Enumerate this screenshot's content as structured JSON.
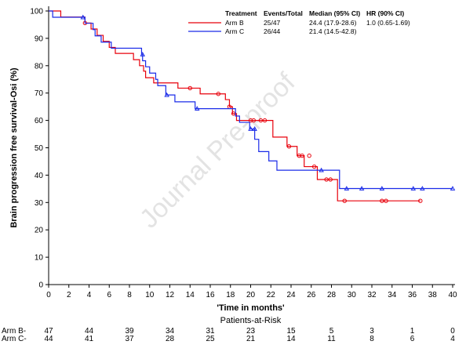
{
  "chart_data": {
    "type": "line",
    "title": "",
    "xlabel": "'Time in months'",
    "ylabel": "Brain progression free survival-Osi (%)",
    "xlim": [
      0,
      40
    ],
    "ylim": [
      0,
      100
    ],
    "x_ticks": [
      0,
      2,
      4,
      6,
      8,
      10,
      12,
      14,
      16,
      18,
      20,
      22,
      24,
      26,
      28,
      30,
      32,
      34,
      36,
      38,
      40
    ],
    "y_ticks": [
      0,
      10,
      20,
      30,
      40,
      50,
      60,
      70,
      80,
      90,
      100
    ],
    "grid": false,
    "watermark": "Journal Pre-proof",
    "legend": {
      "placement": "top-right",
      "headers": [
        "Treatment",
        "Events/Total",
        "Median (95% CI)",
        "HR (90% CI)"
      ],
      "rows": [
        {
          "treatment": "Arm B",
          "events": "25/47",
          "median": "24.4 (17.9-28.6)",
          "hr": "1.0 (0.65-1.69)",
          "color": "#e8000b",
          "marker": "circle"
        },
        {
          "treatment": "Arm C",
          "events": "26/44",
          "median": "21.4 (14.5-42.8)",
          "hr": "",
          "color": "#1a2be8",
          "marker": "triangle"
        }
      ]
    },
    "series": [
      {
        "name": "Arm B",
        "color": "#e8000b",
        "marker": "circle",
        "steps": [
          [
            0,
            100
          ],
          [
            1.2,
            97.8
          ],
          [
            3.6,
            95.6
          ],
          [
            4.2,
            93.4
          ],
          [
            4.8,
            91.1
          ],
          [
            5.4,
            88.9
          ],
          [
            6.0,
            86.7
          ],
          [
            6.6,
            84.5
          ],
          [
            8.4,
            82.2
          ],
          [
            9.0,
            80.0
          ],
          [
            9.4,
            78.0
          ],
          [
            9.6,
            75.6
          ],
          [
            10.4,
            73.7
          ],
          [
            12.8,
            71.8
          ],
          [
            15.0,
            69.7
          ],
          [
            17.5,
            67.6
          ],
          [
            17.9,
            65.0
          ],
          [
            18.2,
            62.5
          ],
          [
            18.6,
            60.0
          ],
          [
            22.2,
            53.9
          ],
          [
            23.6,
            50.5
          ],
          [
            24.6,
            47.1
          ],
          [
            25.3,
            43.1
          ],
          [
            26.6,
            38.4
          ],
          [
            28.6,
            30.6
          ],
          [
            36.8,
            30.6
          ]
        ],
        "censored": [
          [
            3.6,
            95.6
          ],
          [
            14.0,
            71.8
          ],
          [
            16.8,
            69.7
          ],
          [
            17.9,
            65.0
          ],
          [
            18.3,
            62.5
          ],
          [
            20.0,
            60.0
          ],
          [
            20.3,
            60.0
          ],
          [
            21.0,
            60.0
          ],
          [
            21.4,
            60.0
          ],
          [
            23.8,
            50.5
          ],
          [
            24.8,
            47.1
          ],
          [
            25.1,
            47.1
          ],
          [
            25.8,
            47.1
          ],
          [
            26.3,
            43.1
          ],
          [
            27.5,
            38.4
          ],
          [
            27.9,
            38.4
          ],
          [
            29.3,
            30.6
          ],
          [
            33.0,
            30.6
          ],
          [
            33.4,
            30.6
          ],
          [
            36.8,
            30.6
          ]
        ]
      },
      {
        "name": "Arm C",
        "color": "#1a2be8",
        "marker": "triangle",
        "steps": [
          [
            0,
            100
          ],
          [
            0.4,
            97.7
          ],
          [
            3.6,
            95.5
          ],
          [
            4.4,
            93.2
          ],
          [
            4.6,
            90.9
          ],
          [
            5.2,
            88.6
          ],
          [
            6.2,
            86.4
          ],
          [
            9.2,
            84.1
          ],
          [
            9.3,
            81.8
          ],
          [
            9.6,
            79.6
          ],
          [
            10.0,
            77.3
          ],
          [
            10.6,
            75.0
          ],
          [
            10.8,
            72.7
          ],
          [
            11.6,
            69.3
          ],
          [
            12.5,
            66.8
          ],
          [
            14.5,
            64.3
          ],
          [
            18.5,
            61.6
          ],
          [
            18.9,
            59.3
          ],
          [
            19.9,
            56.9
          ],
          [
            20.4,
            53.1
          ],
          [
            20.8,
            48.6
          ],
          [
            21.8,
            45.2
          ],
          [
            22.6,
            41.8
          ],
          [
            28.8,
            35.1
          ],
          [
            40.0,
            35.1
          ]
        ],
        "censored": [
          [
            3.4,
            97.7
          ],
          [
            9.3,
            84.1
          ],
          [
            11.7,
            69.3
          ],
          [
            14.7,
            64.3
          ],
          [
            20.0,
            56.9
          ],
          [
            20.4,
            56.9
          ],
          [
            27.0,
            41.8
          ],
          [
            29.5,
            35.1
          ],
          [
            31.0,
            35.1
          ],
          [
            33.0,
            35.1
          ],
          [
            36.1,
            35.1
          ],
          [
            37.0,
            35.1
          ],
          [
            40.0,
            35.1
          ]
        ]
      }
    ],
    "risk_table": {
      "title": "Patients-at-Risk",
      "times": [
        0,
        4,
        8,
        12,
        16,
        20,
        24,
        28,
        32,
        36,
        40
      ],
      "rows": [
        {
          "label": "Arm B-",
          "counts": [
            "47",
            "44",
            "39",
            "34",
            "31",
            "23",
            "15",
            "5",
            "3",
            "1",
            "0"
          ]
        },
        {
          "label": "Arm C-",
          "counts": [
            "44",
            "41",
            "37",
            "28",
            "25",
            "21",
            "14",
            "11",
            "8",
            "6",
            "4"
          ]
        }
      ]
    }
  }
}
